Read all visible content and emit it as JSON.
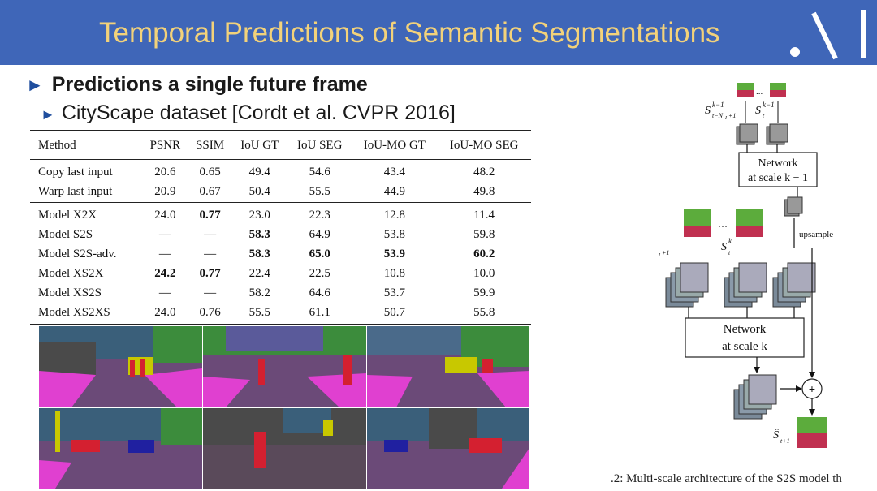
{
  "slide": {
    "title": "Temporal Predictions of Semantic Segmentations",
    "bullets": [
      {
        "text": "Predictions a single future frame"
      },
      {
        "text": "CityScape dataset [Cordt et al. CVPR 2016]"
      }
    ]
  },
  "table": {
    "headers": [
      "Method",
      "PSNR",
      "SSIM",
      "IoU GT",
      "IoU SEG",
      "IoU-MO GT",
      "IoU-MO SEG"
    ],
    "rows": [
      [
        "Copy last input",
        "20.6",
        "0.65",
        "49.4",
        "54.6",
        "43.4",
        "48.2"
      ],
      [
        "Warp last input",
        "20.9",
        "0.67",
        "50.4",
        "55.5",
        "44.9",
        "49.8"
      ],
      [
        "Model X2X",
        "24.0",
        "0.77",
        "23.0",
        "22.3",
        "12.8",
        "11.4"
      ],
      [
        "Model S2S",
        "—",
        "—",
        "58.3",
        "64.9",
        "53.8",
        "59.8"
      ],
      [
        "Model S2S-adv.",
        "—",
        "—",
        "58.3",
        "65.0",
        "53.9",
        "60.2"
      ],
      [
        "Model XS2X",
        "24.2",
        "0.77",
        "22.4",
        "22.5",
        "10.8",
        "10.0"
      ],
      [
        "Model XS2S",
        "—",
        "—",
        "58.2",
        "64.6",
        "53.7",
        "59.9"
      ],
      [
        "Model XS2XS",
        "24.0",
        "0.76",
        "55.5",
        "61.1",
        "50.7",
        "55.8"
      ]
    ]
  },
  "figure": {
    "network_top_line1": "Network",
    "network_top_line2": "at scale k − 1",
    "network_bottom_line1": "Network",
    "network_bottom_line2": "at scale k",
    "upsample_label": "upsample",
    "dots": "...",
    "dots2": "…",
    "plus": "+",
    "caption": ".2: Multi-scale architecture of the S2S model th"
  }
}
